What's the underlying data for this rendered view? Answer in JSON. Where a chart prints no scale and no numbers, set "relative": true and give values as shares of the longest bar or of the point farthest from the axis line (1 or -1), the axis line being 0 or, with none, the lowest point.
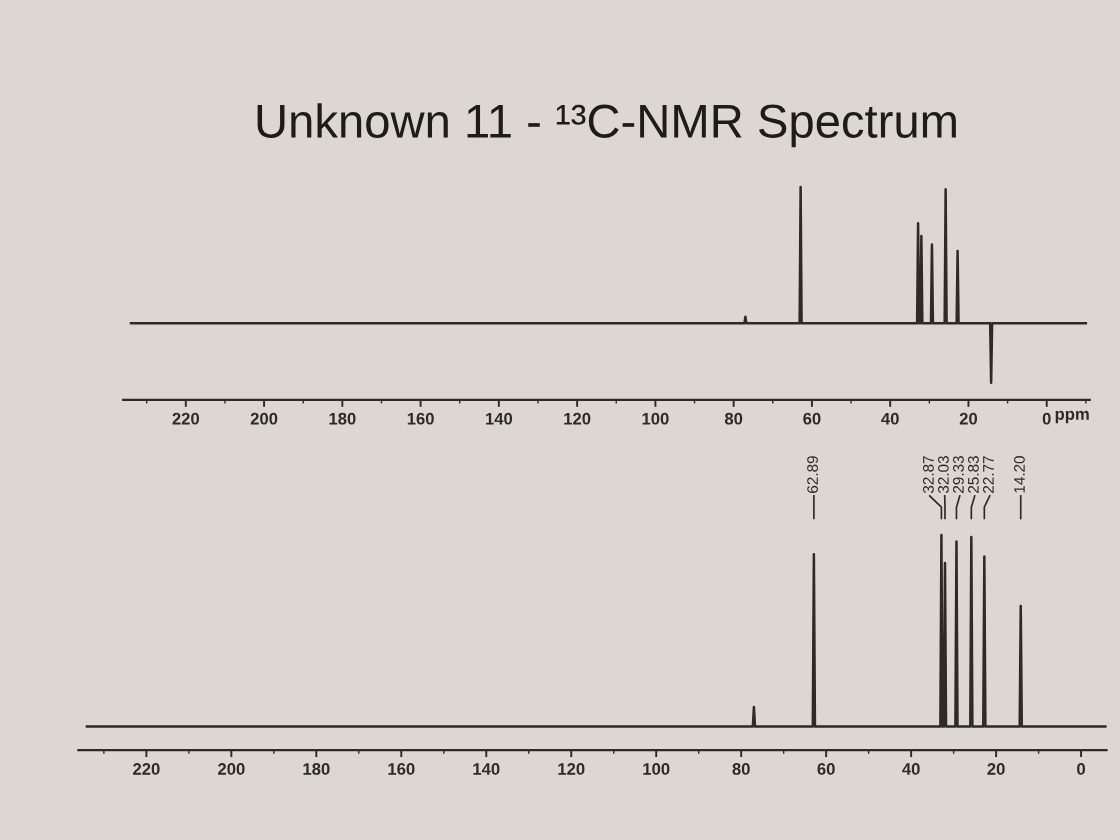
{
  "chart_data": [
    {
      "type": "line",
      "title": "Unknown 11 - ¹³C-NMR Spectrum",
      "xlabel": "ppm",
      "relative": true,
      "xlim": [
        236,
        -11
      ],
      "xticks": [
        220,
        200,
        180,
        160,
        140,
        120,
        100,
        80,
        60,
        40,
        20,
        0
      ],
      "series": [
        {
          "color": "#2e2a27",
          "x": [
            234,
            77.25,
            77.0,
            76.75,
            63.14,
            62.89,
            62.64,
            33.12,
            32.87,
            32.62,
            32.28,
            32.03,
            31.78,
            29.58,
            29.33,
            29.08,
            26.08,
            25.83,
            25.58,
            23.02,
            22.77,
            22.52,
            14.45,
            14.2,
            13.95,
            -10
          ],
          "values": [
            0.36,
            0.36,
            0.39,
            0.36,
            0.36,
            1.0,
            0.36,
            0.36,
            0.83,
            0.36,
            0.36,
            0.77,
            0.36,
            0.36,
            0.73,
            0.36,
            0.36,
            0.99,
            0.36,
            0.36,
            0.7,
            0.36,
            0.36,
            0.08,
            0.36,
            0.36
          ]
        }
      ]
    },
    {
      "type": "line",
      "relative": true,
      "xlim": [
        236,
        -6
      ],
      "xticks": [
        220,
        200,
        180,
        160,
        140,
        120,
        100,
        80,
        60,
        40,
        20,
        0
      ],
      "series": [
        {
          "color": "#2e2a27",
          "x": [
            234,
            77.25,
            77.0,
            76.75,
            63.14,
            62.89,
            62.64,
            33.12,
            32.87,
            32.62,
            32.28,
            32.03,
            31.78,
            29.58,
            29.33,
            29.08,
            26.08,
            25.83,
            25.58,
            23.02,
            22.77,
            22.52,
            14.45,
            14.2,
            13.95,
            -6
          ],
          "values": [
            0.11,
            0.11,
            0.2,
            0.11,
            0.11,
            0.91,
            0.11,
            0.11,
            1.0,
            0.11,
            0.11,
            0.87,
            0.11,
            0.11,
            0.97,
            0.11,
            0.11,
            0.99,
            0.11,
            0.11,
            0.9,
            0.11,
            0.11,
            0.67,
            0.11,
            0.11
          ]
        }
      ],
      "annotations": [
        {
          "text": "62.89",
          "x": 62.89
        },
        {
          "text": "32.87",
          "x": 32.87
        },
        {
          "text": "32.03",
          "x": 32.03
        },
        {
          "text": "29.33",
          "x": 29.33
        },
        {
          "text": "25.83",
          "x": 25.83
        },
        {
          "text": "22.77",
          "x": 22.77
        },
        {
          "text": "14.20",
          "x": 14.2
        }
      ]
    }
  ]
}
